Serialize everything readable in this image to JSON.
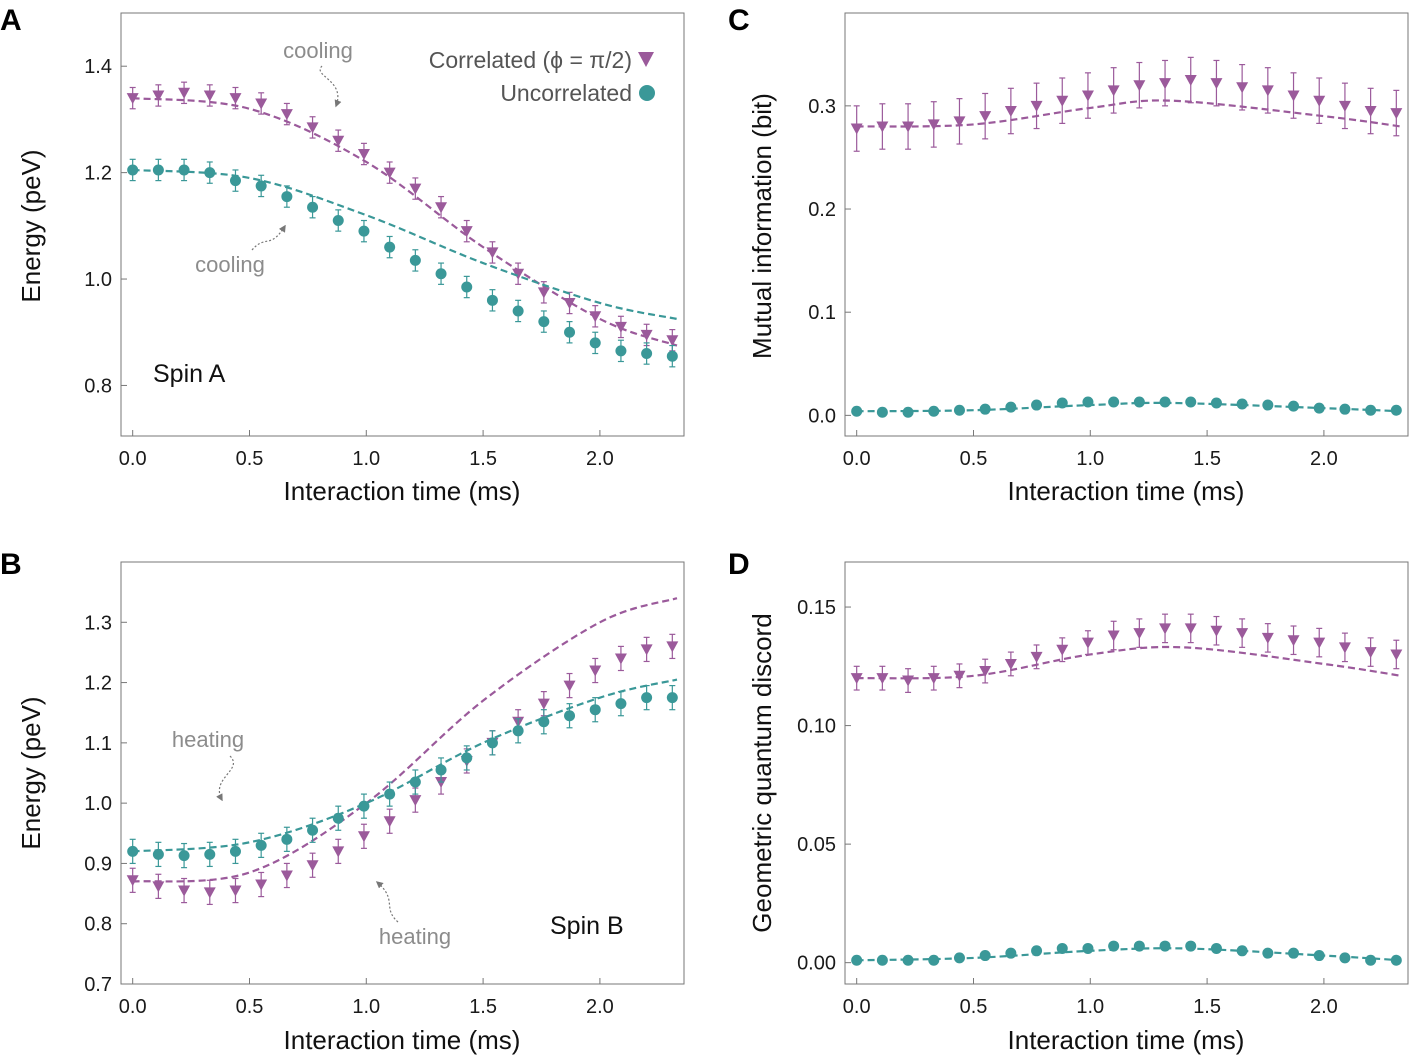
{
  "colors": {
    "correlated": "#9b5a9b",
    "uncorrelated": "#3a9898",
    "annotation": "#8c8c8c",
    "frame": "#777777"
  },
  "legend": {
    "correlated": "Correlated (ϕ = π/2)",
    "uncorrelated": "Uncorrelated"
  },
  "chart_data": [
    {
      "id": "A",
      "panel_label": "A",
      "type": "scatter",
      "xlabel": "Interaction time (ms)",
      "ylabel": "Energy (peV)",
      "xlim": [
        -0.05,
        2.36
      ],
      "ylim": [
        0.705,
        1.5
      ],
      "xticks": [
        "0.0",
        "0.5",
        "1.0",
        "1.5",
        "2.0"
      ],
      "xtick_values": [
        0,
        0.5,
        1.0,
        1.5,
        2.0
      ],
      "yticks": [
        "0.8",
        "1.0",
        "1.2",
        "1.4"
      ],
      "ytick_values": [
        0.8,
        1.0,
        1.2,
        1.4
      ],
      "x": [
        0,
        0.11,
        0.22,
        0.33,
        0.44,
        0.55,
        0.66,
        0.77,
        0.88,
        0.99,
        1.1,
        1.21,
        1.32,
        1.43,
        1.54,
        1.65,
        1.76,
        1.87,
        1.98,
        2.09,
        2.2,
        2.31
      ],
      "series": [
        {
          "name": "Correlated",
          "marker": "triangle-down",
          "values": [
            1.34,
            1.345,
            1.35,
            1.345,
            1.34,
            1.33,
            1.31,
            1.285,
            1.26,
            1.235,
            1.2,
            1.17,
            1.135,
            1.09,
            1.05,
            1.01,
            0.975,
            0.955,
            0.93,
            0.91,
            0.895,
            0.885
          ],
          "errors": [
            0.02,
            0.02,
            0.02,
            0.02,
            0.02,
            0.02,
            0.02,
            0.02,
            0.02,
            0.02,
            0.02,
            0.02,
            0.02,
            0.02,
            0.02,
            0.02,
            0.02,
            0.02,
            0.02,
            0.02,
            0.02,
            0.02
          ],
          "theory_x": [
            0,
            0.5,
            1.0,
            1.5,
            2.0,
            2.33
          ],
          "theory": [
            1.34,
            1.32,
            1.22,
            1.06,
            0.925,
            0.875
          ]
        },
        {
          "name": "Uncorrelated",
          "marker": "circle",
          "values": [
            1.205,
            1.205,
            1.205,
            1.2,
            1.185,
            1.175,
            1.155,
            1.135,
            1.11,
            1.09,
            1.06,
            1.035,
            1.01,
            0.985,
            0.96,
            0.94,
            0.92,
            0.9,
            0.88,
            0.865,
            0.86,
            0.855
          ],
          "errors": [
            0.02,
            0.02,
            0.02,
            0.02,
            0.02,
            0.02,
            0.02,
            0.02,
            0.02,
            0.02,
            0.02,
            0.02,
            0.02,
            0.02,
            0.02,
            0.02,
            0.02,
            0.02,
            0.02,
            0.02,
            0.02,
            0.02
          ],
          "theory_x": [
            0,
            0.5,
            1.0,
            1.5,
            2.0,
            2.33
          ],
          "theory": [
            1.205,
            1.19,
            1.12,
            1.03,
            0.955,
            0.925
          ]
        }
      ],
      "annotations": [
        "cooling",
        "cooling",
        "Spin A"
      ]
    },
    {
      "id": "B",
      "panel_label": "B",
      "type": "scatter",
      "xlabel": "Interaction time (ms)",
      "ylabel": "Energy (peV)",
      "xlim": [
        -0.05,
        2.36
      ],
      "ylim": [
        0.7,
        1.4
      ],
      "xticks": [
        "0.0",
        "0.5",
        "1.0",
        "1.5",
        "2.0"
      ],
      "xtick_values": [
        0,
        0.5,
        1.0,
        1.5,
        2.0
      ],
      "yticks": [
        "0.7",
        "0.8",
        "0.9",
        "1.0",
        "1.1",
        "1.2",
        "1.3"
      ],
      "ytick_values": [
        0.7,
        0.8,
        0.9,
        1.0,
        1.1,
        1.2,
        1.3
      ],
      "x": [
        0,
        0.11,
        0.22,
        0.33,
        0.44,
        0.55,
        0.66,
        0.77,
        0.88,
        0.99,
        1.1,
        1.21,
        1.32,
        1.43,
        1.54,
        1.65,
        1.76,
        1.87,
        1.98,
        2.09,
        2.2,
        2.31
      ],
      "series": [
        {
          "name": "Correlated",
          "marker": "triangle-down",
          "values": [
            0.872,
            0.862,
            0.855,
            0.852,
            0.855,
            0.865,
            0.88,
            0.897,
            0.92,
            0.945,
            0.97,
            1.005,
            1.035,
            1.07,
            1.1,
            1.135,
            1.165,
            1.195,
            1.22,
            1.24,
            1.255,
            1.26
          ],
          "errors": [
            0.02,
            0.02,
            0.02,
            0.02,
            0.02,
            0.02,
            0.02,
            0.02,
            0.02,
            0.02,
            0.02,
            0.02,
            0.02,
            0.02,
            0.02,
            0.02,
            0.02,
            0.02,
            0.02,
            0.02,
            0.02,
            0.02
          ],
          "theory_x": [
            0,
            0.5,
            1.0,
            1.5,
            2.0,
            2.33
          ],
          "theory": [
            0.87,
            0.885,
            1.0,
            1.17,
            1.3,
            1.34
          ]
        },
        {
          "name": "Uncorrelated",
          "marker": "circle",
          "values": [
            0.92,
            0.915,
            0.913,
            0.915,
            0.92,
            0.93,
            0.94,
            0.955,
            0.975,
            0.995,
            1.015,
            1.035,
            1.055,
            1.075,
            1.1,
            1.12,
            1.135,
            1.145,
            1.155,
            1.165,
            1.175,
            1.175
          ],
          "errors": [
            0.02,
            0.02,
            0.02,
            0.02,
            0.02,
            0.02,
            0.02,
            0.02,
            0.02,
            0.02,
            0.02,
            0.02,
            0.02,
            0.02,
            0.02,
            0.02,
            0.02,
            0.02,
            0.02,
            0.02,
            0.02,
            0.02
          ],
          "theory_x": [
            0,
            0.5,
            1.0,
            1.5,
            2.0,
            2.33
          ],
          "theory": [
            0.92,
            0.935,
            1.0,
            1.1,
            1.175,
            1.205
          ]
        }
      ],
      "annotations": [
        "heating",
        "heating",
        "Spin B"
      ]
    },
    {
      "id": "C",
      "panel_label": "C",
      "type": "scatter",
      "xlabel": "Interaction time (ms)",
      "ylabel": "Mutual information (bit)",
      "xlim": [
        -0.05,
        2.36
      ],
      "ylim": [
        -0.02,
        0.39
      ],
      "xticks": [
        "0.0",
        "0.5",
        "1.0",
        "1.5",
        "2.0"
      ],
      "xtick_values": [
        0,
        0.5,
        1.0,
        1.5,
        2.0
      ],
      "yticks": [
        "0.0",
        "0.1",
        "0.2",
        "0.3"
      ],
      "ytick_values": [
        0,
        0.1,
        0.2,
        0.3
      ],
      "x": [
        0,
        0.11,
        0.22,
        0.33,
        0.44,
        0.55,
        0.66,
        0.77,
        0.88,
        0.99,
        1.1,
        1.21,
        1.32,
        1.43,
        1.54,
        1.65,
        1.76,
        1.87,
        1.98,
        2.09,
        2.2,
        2.31
      ],
      "series": [
        {
          "name": "Correlated",
          "marker": "triangle-down",
          "values": [
            0.278,
            0.28,
            0.28,
            0.282,
            0.285,
            0.29,
            0.295,
            0.3,
            0.305,
            0.31,
            0.315,
            0.32,
            0.322,
            0.325,
            0.322,
            0.318,
            0.315,
            0.31,
            0.305,
            0.3,
            0.295,
            0.293
          ],
          "errors": [
            0.022,
            0.022,
            0.022,
            0.022,
            0.022,
            0.022,
            0.022,
            0.022,
            0.022,
            0.022,
            0.022,
            0.022,
            0.022,
            0.022,
            0.022,
            0.022,
            0.022,
            0.022,
            0.022,
            0.022,
            0.022,
            0.022
          ],
          "theory_x": [
            0,
            0.5,
            1.0,
            1.35,
            2.0,
            2.33
          ],
          "theory": [
            0.28,
            0.282,
            0.298,
            0.305,
            0.29,
            0.28
          ]
        },
        {
          "name": "Uncorrelated",
          "marker": "circle",
          "values": [
            0.004,
            0.003,
            0.003,
            0.004,
            0.005,
            0.006,
            0.008,
            0.01,
            0.012,
            0.013,
            0.013,
            0.013,
            0.013,
            0.013,
            0.012,
            0.011,
            0.01,
            0.009,
            0.007,
            0.006,
            0.005,
            0.005
          ],
          "errors": [
            0,
            0,
            0,
            0,
            0,
            0,
            0,
            0,
            0,
            0,
            0,
            0,
            0,
            0,
            0,
            0,
            0,
            0,
            0,
            0,
            0,
            0
          ],
          "theory_x": [
            0,
            0.5,
            1.0,
            1.35,
            2.0,
            2.33
          ],
          "theory": [
            0.004,
            0.005,
            0.01,
            0.012,
            0.007,
            0.004
          ]
        }
      ],
      "annotations": []
    },
    {
      "id": "D",
      "panel_label": "D",
      "type": "scatter",
      "xlabel": "Interaction time (ms)",
      "ylabel": "Geometric quantum discord",
      "xlim": [
        -0.05,
        2.36
      ],
      "ylim": [
        -0.009,
        0.169
      ],
      "xticks": [
        "0.0",
        "0.5",
        "1.0",
        "1.5",
        "2.0"
      ],
      "xtick_values": [
        0,
        0.5,
        1.0,
        1.5,
        2.0
      ],
      "yticks": [
        "0.00",
        "0.05",
        "0.10",
        "0.15"
      ],
      "ytick_values": [
        0,
        0.05,
        0.1,
        0.15
      ],
      "x": [
        0,
        0.11,
        0.22,
        0.33,
        0.44,
        0.55,
        0.66,
        0.77,
        0.88,
        0.99,
        1.1,
        1.21,
        1.32,
        1.43,
        1.54,
        1.65,
        1.76,
        1.87,
        1.98,
        2.09,
        2.2,
        2.31
      ],
      "series": [
        {
          "name": "Correlated",
          "marker": "triangle-down",
          "values": [
            0.12,
            0.12,
            0.119,
            0.12,
            0.121,
            0.123,
            0.126,
            0.129,
            0.132,
            0.135,
            0.138,
            0.139,
            0.141,
            0.141,
            0.14,
            0.139,
            0.137,
            0.136,
            0.135,
            0.133,
            0.131,
            0.13
          ],
          "errors": [
            0.005,
            0.005,
            0.005,
            0.005,
            0.005,
            0.005,
            0.005,
            0.005,
            0.005,
            0.005,
            0.006,
            0.006,
            0.006,
            0.006,
            0.006,
            0.006,
            0.006,
            0.006,
            0.006,
            0.006,
            0.006,
            0.006
          ],
          "theory_x": [
            0,
            0.5,
            1.0,
            1.4,
            2.0,
            2.33
          ],
          "theory": [
            0.12,
            0.121,
            0.13,
            0.133,
            0.126,
            0.121
          ]
        },
        {
          "name": "Uncorrelated",
          "marker": "circle",
          "values": [
            0.001,
            0.001,
            0.001,
            0.001,
            0.002,
            0.003,
            0.004,
            0.005,
            0.006,
            0.006,
            0.007,
            0.007,
            0.007,
            0.007,
            0.006,
            0.005,
            0.004,
            0.004,
            0.003,
            0.002,
            0.001,
            0.001
          ],
          "errors": [
            0,
            0,
            0,
            0,
            0,
            0,
            0,
            0,
            0,
            0,
            0,
            0,
            0,
            0,
            0,
            0,
            0,
            0,
            0,
            0,
            0,
            0
          ],
          "theory_x": [
            0,
            0.5,
            1.0,
            1.4,
            2.0,
            2.33
          ],
          "theory": [
            0.001,
            0.002,
            0.005,
            0.006,
            0.003,
            0.001
          ]
        }
      ],
      "annotations": []
    }
  ]
}
